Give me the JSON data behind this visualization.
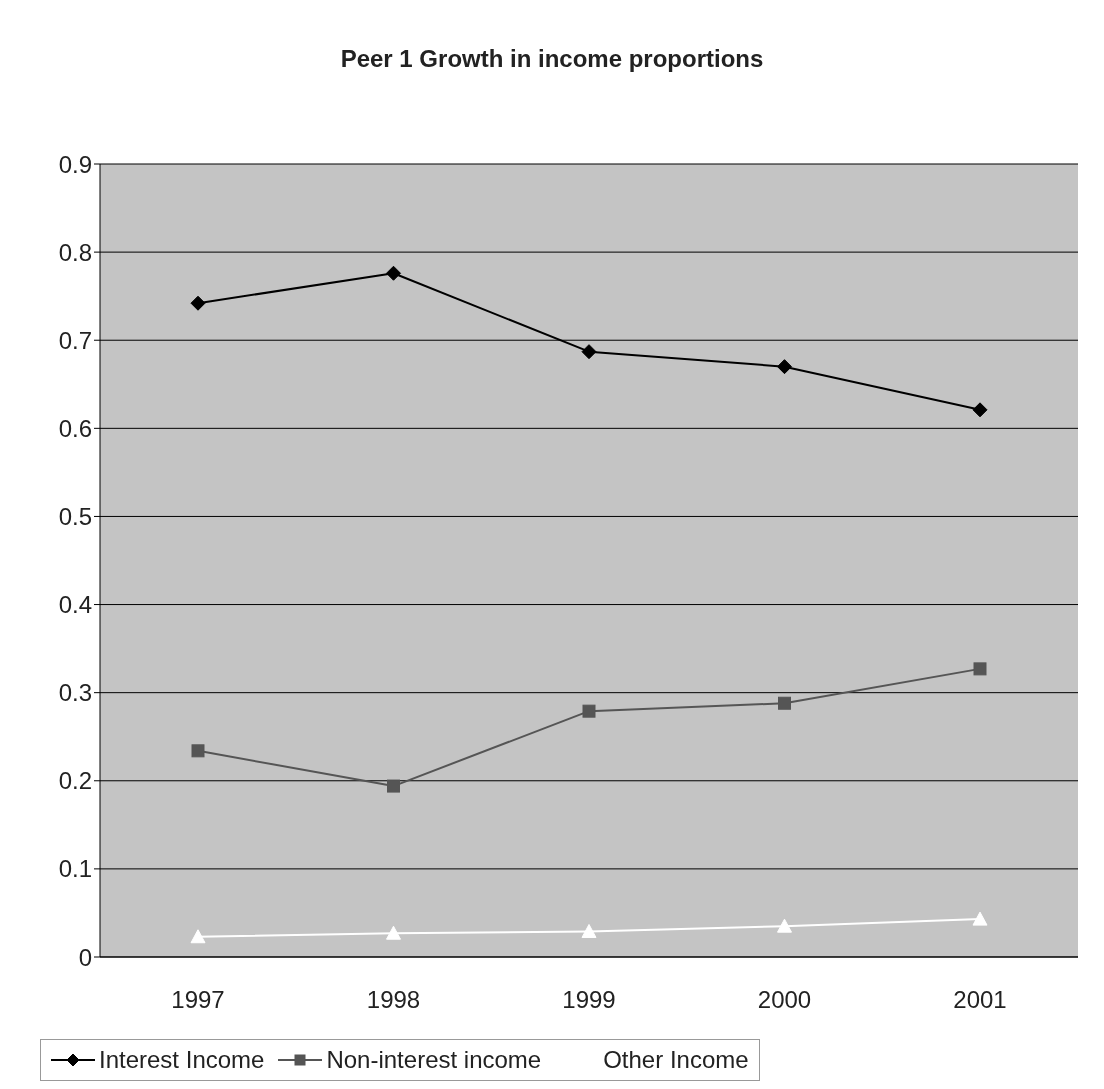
{
  "chart_data": {
    "type": "line",
    "title": "Peer 1 Growth in income proportions",
    "categories": [
      "1997",
      "1998",
      "1999",
      "2000",
      "2001"
    ],
    "series": [
      {
        "name": "Interest Income",
        "color": "#000000",
        "marker": "diamond",
        "values": [
          0.742,
          0.776,
          0.687,
          0.67,
          0.621
        ]
      },
      {
        "name": "Non-interest income",
        "color": "#555555",
        "marker": "square",
        "values": [
          0.234,
          0.194,
          0.279,
          0.288,
          0.327
        ]
      },
      {
        "name": "Other Income",
        "color": "#ffffff",
        "marker": "triangle",
        "values": [
          0.023,
          0.027,
          0.029,
          0.035,
          0.043
        ]
      }
    ],
    "ylim": [
      0,
      0.9
    ],
    "yticks": [
      0,
      0.1,
      0.2,
      0.3,
      0.4,
      0.5,
      0.6,
      0.7,
      0.8,
      0.9
    ],
    "grid": "y",
    "legend": "bottom",
    "line_style": "solid"
  }
}
